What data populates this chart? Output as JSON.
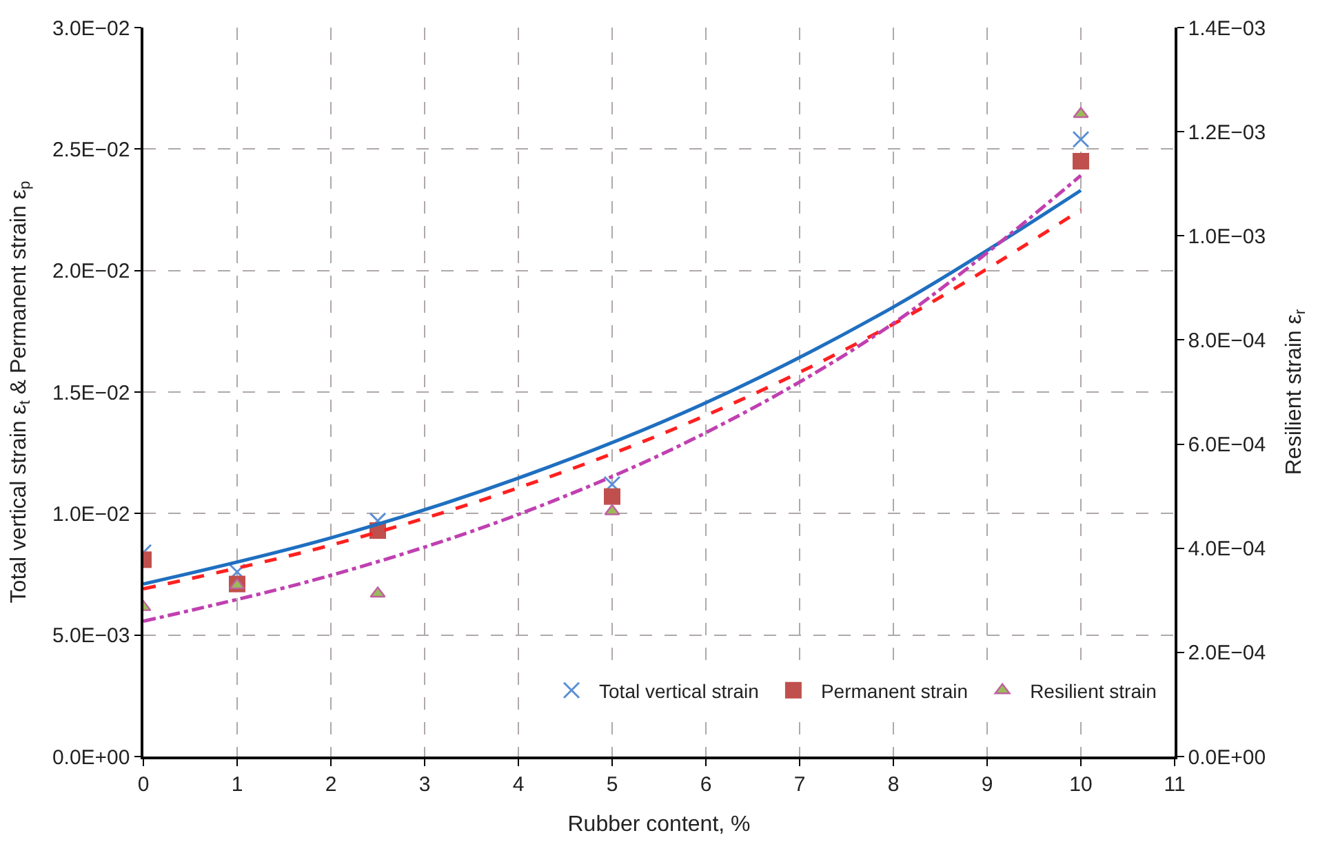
{
  "chart_data": {
    "type": "scatter",
    "xlabel": "Rubber content, %",
    "ylabel": "Total vertical strain ε$_{t}$ & Permanent strain ε$_{p}$",
    "y2label": "Resilient strain ε$_{r}$",
    "x": [
      0,
      1,
      2.5,
      5,
      10
    ],
    "xlim": [
      0,
      11
    ],
    "xticks": [
      0,
      1,
      2,
      3,
      4,
      5,
      6,
      7,
      8,
      9,
      10,
      11
    ],
    "ylim": [
      0,
      0.03
    ],
    "yticks": [
      {
        "value": 0,
        "label": "0.0E+00"
      },
      {
        "value": 0.005,
        "label": "5.0E−03"
      },
      {
        "value": 0.01,
        "label": "1.0E−02"
      },
      {
        "value": 0.015,
        "label": "1.5E−02"
      },
      {
        "value": 0.02,
        "label": "2.0E−02"
      },
      {
        "value": 0.025,
        "label": "2.5E−02"
      },
      {
        "value": 0.03,
        "label": "3.0E−02"
      }
    ],
    "y2lim": [
      0,
      0.0014
    ],
    "y2ticks": [
      {
        "value": 0,
        "label": "0.0E+00"
      },
      {
        "value": 0.0002,
        "label": "2.0E−04"
      },
      {
        "value": 0.0004,
        "label": "4.0E−04"
      },
      {
        "value": 0.0006,
        "label": "6.0E−04"
      },
      {
        "value": 0.0008,
        "label": "8.0E−04"
      },
      {
        "value": 0.001,
        "label": "1.0E−03"
      },
      {
        "value": 0.0012,
        "label": "1.2E−03"
      },
      {
        "value": 0.0014,
        "label": "1.4E−03"
      }
    ],
    "grid": true,
    "legend": "bottom right",
    "series": [
      {
        "name": "Total vertical strain",
        "marker": "cross",
        "color": "#5b8fd6",
        "values": [
          0.0084,
          0.0076,
          0.0097,
          0.0112,
          0.0254
        ]
      },
      {
        "name": "Permanent strain",
        "marker": "square",
        "color": "#c0504d",
        "values": [
          0.0081,
          0.0071,
          0.0093,
          0.0107,
          0.0245
        ]
      },
      {
        "name": "Resilient strain",
        "marker": "triangle",
        "color": "#9bbb59",
        "axis": "y2",
        "values": [
          0.000287,
          0.000329,
          0.000313,
          0.000471,
          0.001234
        ]
      },
      {
        "type": "line",
        "line_style": "solid",
        "color": "#1f6fc0",
        "x": [
          0,
          2,
          4,
          6,
          8,
          10
        ],
        "values": [
          0.0071,
          0.009,
          0.01146,
          0.01456,
          0.0185,
          0.0233
        ]
      },
      {
        "type": "line",
        "line_style": "dashed",
        "color": "#ff2020",
        "x": [
          0,
          2,
          4,
          6,
          8,
          10
        ],
        "values": [
          0.0069,
          0.0087,
          0.01106,
          0.01404,
          0.0178,
          0.0225
        ]
      },
      {
        "type": "line",
        "line_style": "dashdot",
        "color": "#c040b0",
        "axis": "y2",
        "x": [
          0,
          2,
          4,
          6,
          8,
          10
        ],
        "values": [
          0.00026,
          0.000348,
          0.000465,
          0.000622,
          0.000832,
          0.001116
        ]
      }
    ]
  }
}
